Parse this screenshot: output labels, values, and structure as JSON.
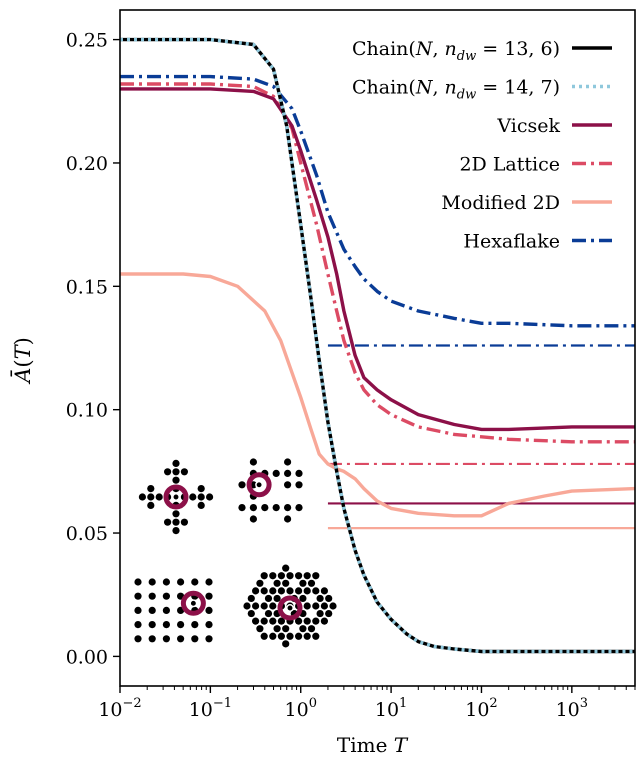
{
  "chart_data": {
    "type": "line",
    "title": "",
    "xlabel": "Time T",
    "ylabel": "Ā(T)",
    "xscale": "log",
    "xlim": [
      0.01,
      5000
    ],
    "ylim": [
      -0.012,
      0.262
    ],
    "x_ticks": [
      0.01,
      0.1,
      1,
      10,
      100,
      1000
    ],
    "x_tick_labels": [
      {
        "base": "10",
        "exp": "−2"
      },
      {
        "base": "10",
        "exp": "−1"
      },
      {
        "base": "10",
        "exp": "0"
      },
      {
        "base": "10",
        "exp": "1"
      },
      {
        "base": "10",
        "exp": "2"
      },
      {
        "base": "10",
        "exp": "3"
      }
    ],
    "y_ticks": [
      0.0,
      0.05,
      0.1,
      0.15,
      0.2,
      0.25
    ],
    "y_tick_labels": [
      "0.00",
      "0.05",
      "0.10",
      "0.15",
      "0.20",
      "0.25"
    ],
    "grid": false,
    "legend_position": "top-right",
    "series": [
      {
        "name": "Chain(N, n_dw = 13, 6)",
        "legend_label": {
          "prefix": "Chain(",
          "N": "N",
          "sep": ", ",
          "n": "n",
          "sub": "dw",
          "eq": " = 13, 6)"
        },
        "color": "#000000",
        "style": "solid",
        "x": [
          0.01,
          0.1,
          0.3,
          0.5,
          0.7,
          1.0,
          1.3,
          1.6,
          2.0,
          2.5,
          3.0,
          4.0,
          5.0,
          7.0,
          10,
          15,
          20,
          30,
          50,
          100,
          300,
          1000,
          5000
        ],
        "y": [
          0.25,
          0.25,
          0.248,
          0.238,
          0.215,
          0.175,
          0.145,
          0.12,
          0.095,
          0.075,
          0.06,
          0.043,
          0.033,
          0.022,
          0.015,
          0.009,
          0.006,
          0.004,
          0.003,
          0.002,
          0.002,
          0.002,
          0.002
        ]
      },
      {
        "name": "Chain(N, n_dw = 14, 7)",
        "legend_label": {
          "prefix": "Chain(",
          "N": "N",
          "sep": ", ",
          "n": "n",
          "sub": "dw",
          "eq": " = 14, 7)"
        },
        "color": "#8fc8dc",
        "style": "dotted",
        "x": [
          0.01,
          0.1,
          0.3,
          0.5,
          0.7,
          1.0,
          1.3,
          1.6,
          2.0,
          2.5,
          3.0,
          4.0,
          5.0,
          7.0,
          10,
          15,
          20,
          30,
          50,
          100,
          300,
          1000,
          5000
        ],
        "y": [
          0.25,
          0.25,
          0.248,
          0.238,
          0.215,
          0.175,
          0.145,
          0.12,
          0.095,
          0.075,
          0.06,
          0.043,
          0.033,
          0.022,
          0.015,
          0.009,
          0.006,
          0.004,
          0.003,
          0.002,
          0.002,
          0.002,
          0.002
        ]
      },
      {
        "name": "Vicsek",
        "color": "#8c1048",
        "style": "solid",
        "x": [
          0.01,
          0.1,
          0.3,
          0.5,
          0.8,
          1.0,
          1.5,
          2.0,
          2.5,
          3.0,
          4.0,
          5.0,
          7.0,
          10,
          20,
          50,
          100,
          200,
          1000,
          5000
        ],
        "y": [
          0.23,
          0.23,
          0.229,
          0.226,
          0.215,
          0.205,
          0.185,
          0.17,
          0.155,
          0.14,
          0.122,
          0.113,
          0.108,
          0.104,
          0.098,
          0.094,
          0.092,
          0.092,
          0.093,
          0.093
        ]
      },
      {
        "name": "2D Lattice",
        "color": "#dc4b64",
        "style": "dashdot",
        "x": [
          0.01,
          0.1,
          0.3,
          0.5,
          0.8,
          1.0,
          1.5,
          2.0,
          2.5,
          3.0,
          4.0,
          5.0,
          7.0,
          10,
          20,
          50,
          100,
          200,
          1000,
          5000
        ],
        "y": [
          0.232,
          0.232,
          0.231,
          0.227,
          0.214,
          0.2,
          0.175,
          0.155,
          0.14,
          0.128,
          0.115,
          0.108,
          0.102,
          0.098,
          0.093,
          0.09,
          0.089,
          0.088,
          0.087,
          0.087
        ]
      },
      {
        "name": "Modified 2D",
        "color": "#f8a898",
        "style": "solid",
        "x": [
          0.01,
          0.05,
          0.1,
          0.2,
          0.4,
          0.6,
          0.8,
          1.0,
          1.3,
          1.6,
          2.0,
          2.5,
          3.0,
          4.0,
          5.0,
          7.0,
          10,
          20,
          50,
          100,
          200,
          500,
          1000,
          5000
        ],
        "y": [
          0.155,
          0.155,
          0.154,
          0.15,
          0.14,
          0.128,
          0.115,
          0.105,
          0.092,
          0.082,
          0.078,
          0.076,
          0.075,
          0.072,
          0.068,
          0.063,
          0.06,
          0.058,
          0.057,
          0.057,
          0.062,
          0.065,
          0.067,
          0.068
        ]
      },
      {
        "name": "Hexaflake",
        "color": "#0a3c96",
        "style": "dashdot",
        "x": [
          0.01,
          0.1,
          0.3,
          0.5,
          0.8,
          1.0,
          1.5,
          2.0,
          3.0,
          4.0,
          5.0,
          7.0,
          10,
          20,
          50,
          100,
          200,
          1000,
          5000
        ],
        "y": [
          0.235,
          0.235,
          0.234,
          0.231,
          0.222,
          0.213,
          0.195,
          0.18,
          0.165,
          0.158,
          0.153,
          0.148,
          0.144,
          0.14,
          0.137,
          0.135,
          0.135,
          0.134,
          0.134
        ]
      }
    ],
    "reference_lines": [
      {
        "series": "Hexaflake",
        "y": 0.126,
        "x_from": 2,
        "x_to": 5000,
        "color": "#0a3c96",
        "style": "dashdot"
      },
      {
        "series": "2D Lattice",
        "y": 0.078,
        "x_from": 2,
        "x_to": 5000,
        "color": "#dc4b64",
        "style": "dashdot"
      },
      {
        "series": "Vicsek",
        "y": 0.062,
        "x_from": 2,
        "x_to": 5000,
        "color": "#8c1048",
        "style": "solid"
      },
      {
        "series": "Modified 2D",
        "y": 0.052,
        "x_from": 2,
        "x_to": 5000,
        "color": "#f8a898",
        "style": "solid"
      }
    ],
    "insets": [
      {
        "name": "vicsek-graph",
        "ring_color": "#8c1048"
      },
      {
        "name": "modified-2d-graph",
        "ring_color": "#8c1048"
      },
      {
        "name": "2d-lattice-graph",
        "ring_color": "#8c1048"
      },
      {
        "name": "hexaflake-graph",
        "ring_color": "#8c1048"
      }
    ]
  }
}
